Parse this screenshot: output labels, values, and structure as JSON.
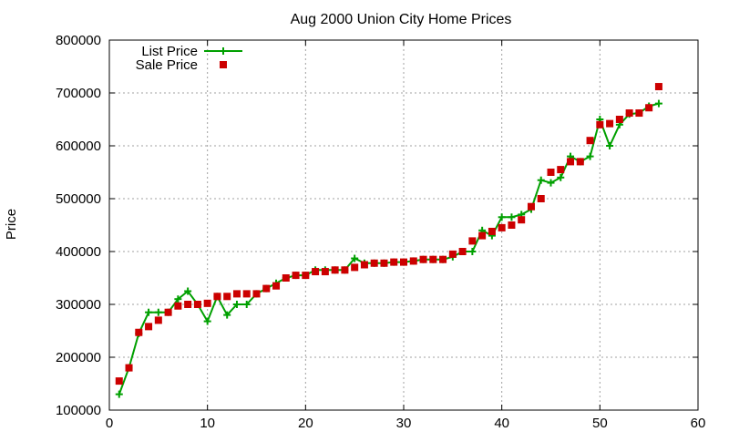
{
  "chart_data": {
    "type": "scatter",
    "title": "Aug 2000 Union City Home Prices",
    "xlabel": "",
    "ylabel": "Price",
    "xlim": [
      0,
      60
    ],
    "ylim": [
      100000,
      800000
    ],
    "x_ticks": [
      0,
      10,
      20,
      30,
      40,
      50,
      60
    ],
    "y_ticks": [
      100000,
      200000,
      300000,
      400000,
      500000,
      600000,
      700000,
      800000
    ],
    "grid": true,
    "legend_position": "top-left",
    "series": [
      {
        "name": "List Price",
        "style": "line-with-plus-markers",
        "color": "#00a000",
        "x": [
          1,
          2,
          3,
          4,
          5,
          6,
          7,
          8,
          9,
          10,
          11,
          12,
          13,
          14,
          15,
          16,
          17,
          18,
          19,
          20,
          21,
          22,
          23,
          24,
          25,
          26,
          27,
          28,
          29,
          30,
          31,
          32,
          33,
          34,
          35,
          36,
          37,
          38,
          39,
          40,
          41,
          42,
          43,
          44,
          45,
          46,
          47,
          48,
          49,
          50,
          51,
          52,
          53,
          54,
          55,
          56
        ],
        "y": [
          130000,
          180000,
          245000,
          285000,
          285000,
          285000,
          310000,
          325000,
          300000,
          268000,
          315000,
          280000,
          300000,
          300000,
          320000,
          330000,
          340000,
          350000,
          355000,
          355000,
          365000,
          365000,
          365000,
          365000,
          387000,
          378000,
          378000,
          378000,
          380000,
          380000,
          382000,
          385000,
          385000,
          385000,
          390000,
          400000,
          400000,
          440000,
          430000,
          465000,
          465000,
          470000,
          480000,
          535000,
          530000,
          540000,
          580000,
          570000,
          580000,
          650000,
          600000,
          640000,
          660000,
          662000,
          675000,
          680000
        ]
      },
      {
        "name": "Sale Price",
        "style": "square-markers",
        "color": "#cc0000",
        "x": [
          1,
          2,
          3,
          4,
          5,
          6,
          7,
          8,
          9,
          10,
          11,
          12,
          13,
          14,
          15,
          16,
          17,
          18,
          19,
          20,
          21,
          22,
          23,
          24,
          25,
          26,
          27,
          28,
          29,
          30,
          31,
          32,
          33,
          34,
          35,
          36,
          37,
          38,
          39,
          40,
          41,
          42,
          43,
          44,
          45,
          46,
          47,
          48,
          49,
          50,
          51,
          52,
          53,
          54,
          55,
          56
        ],
        "y": [
          155000,
          180000,
          247000,
          258000,
          270000,
          285000,
          297000,
          300000,
          300000,
          302000,
          315000,
          315000,
          320000,
          320000,
          320000,
          330000,
          335000,
          350000,
          355000,
          355000,
          362000,
          362000,
          365000,
          365000,
          370000,
          375000,
          378000,
          378000,
          380000,
          380000,
          382000,
          385000,
          385000,
          385000,
          395000,
          400000,
          420000,
          430000,
          438000,
          445000,
          450000,
          460000,
          485000,
          500000,
          550000,
          555000,
          570000,
          570000,
          610000,
          640000,
          642000,
          650000,
          662000,
          662000,
          672000,
          712000
        ]
      }
    ]
  }
}
